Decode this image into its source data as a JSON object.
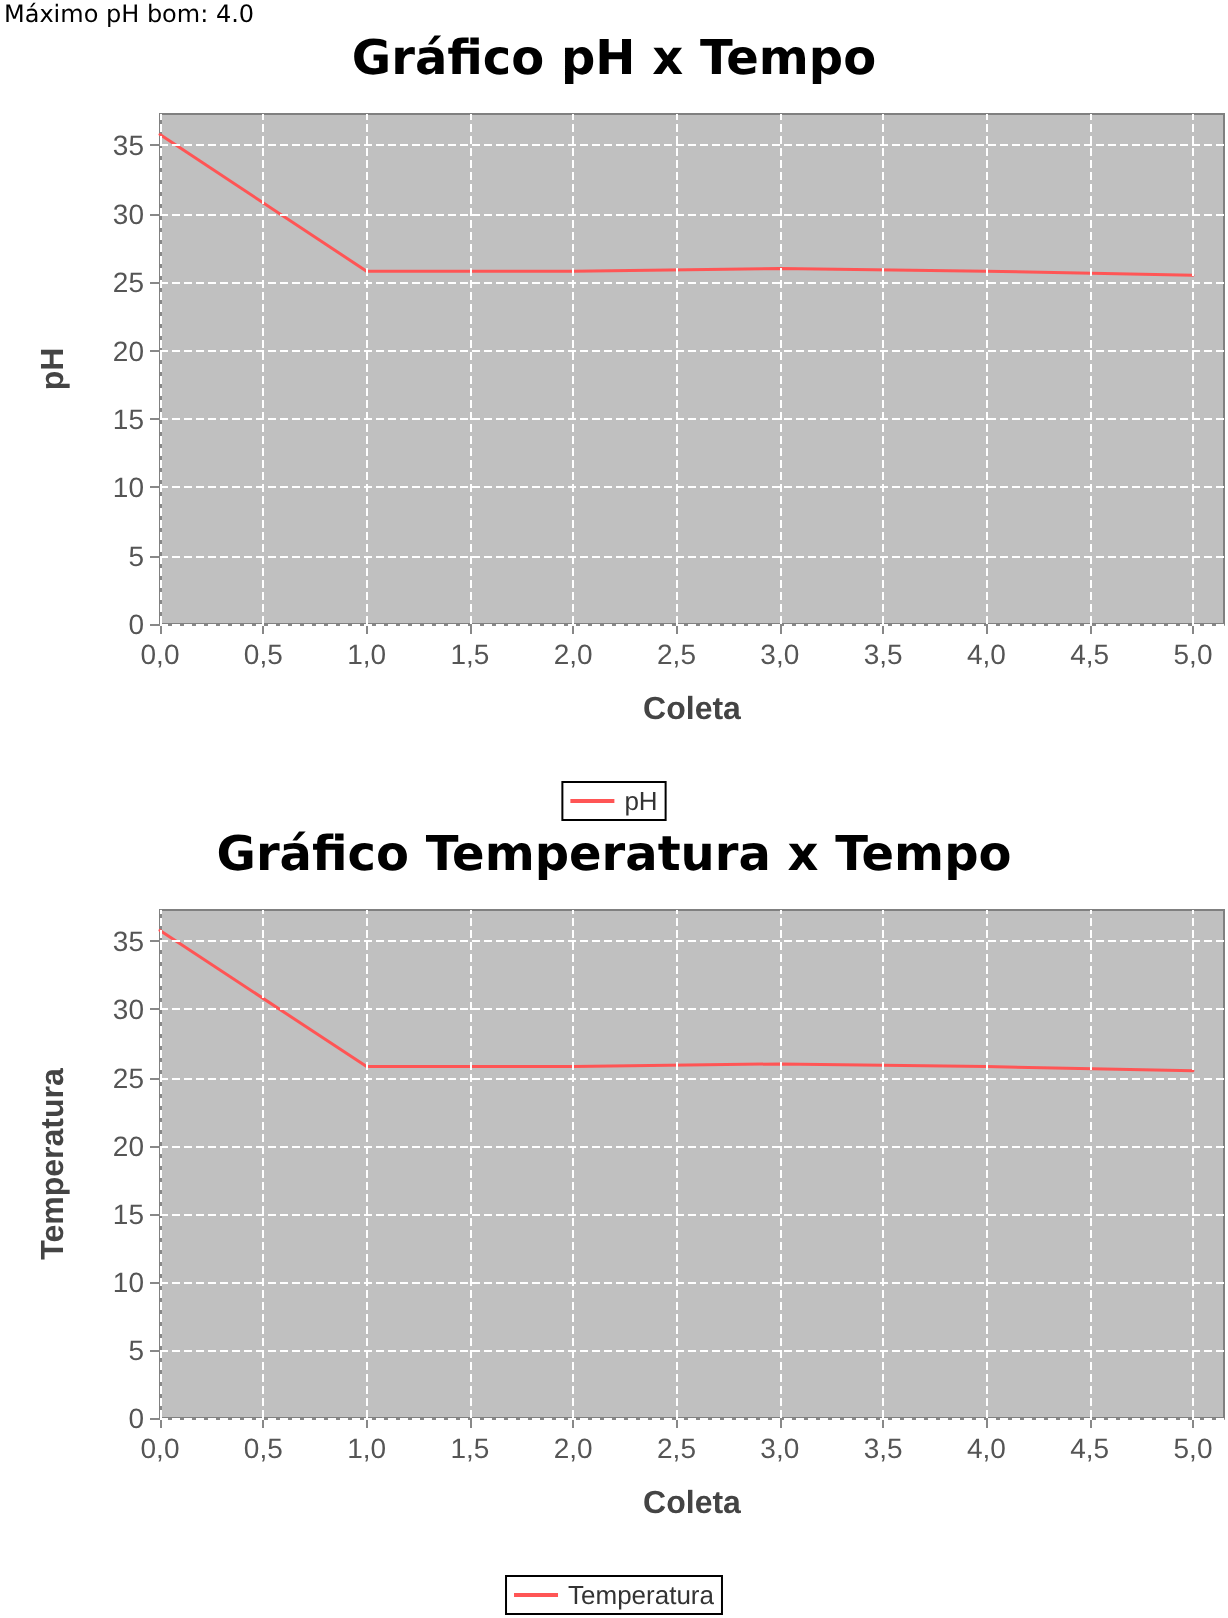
{
  "chart_data": [
    {
      "type": "line",
      "title": "Gráfico pH x Tempo",
      "xlabel": "Coleta",
      "ylabel": "pH",
      "annotations": [
        "Máximo pH bom: 4.0"
      ],
      "x": [
        0,
        1,
        2,
        3,
        4,
        5
      ],
      "series": [
        {
          "name": "pH",
          "color": "#ff5555",
          "values": [
            35.8,
            25.8,
            25.8,
            26.0,
            25.8,
            25.5
          ]
        }
      ],
      "xlim": [
        0,
        5.15
      ],
      "ylim": [
        0,
        37.3
      ],
      "xticks": [
        {
          "value": 0,
          "label": "0,0"
        },
        {
          "value": 0.5,
          "label": "0,5"
        },
        {
          "value": 1,
          "label": "1,0"
        },
        {
          "value": 1.5,
          "label": "1,5"
        },
        {
          "value": 2,
          "label": "2,0"
        },
        {
          "value": 2.5,
          "label": "2,5"
        },
        {
          "value": 3,
          "label": "3,0"
        },
        {
          "value": 3.5,
          "label": "3,5"
        },
        {
          "value": 4,
          "label": "4,0"
        },
        {
          "value": 4.5,
          "label": "4,5"
        },
        {
          "value": 5,
          "label": "5,0"
        }
      ],
      "yticks": [
        0,
        5,
        10,
        15,
        20,
        25,
        30,
        35
      ],
      "grid": true,
      "legend": "bottom",
      "marker": "none",
      "line_style": "solid"
    },
    {
      "type": "line",
      "title": "Gráfico Temperatura x Tempo",
      "xlabel": "Coleta",
      "ylabel": "Temperatura",
      "x": [
        0,
        1,
        2,
        3,
        4,
        5
      ],
      "series": [
        {
          "name": "Temperatura",
          "color": "#ff5555",
          "values": [
            35.8,
            25.8,
            25.8,
            26.0,
            25.8,
            25.5
          ]
        }
      ],
      "xlim": [
        0,
        5.15
      ],
      "ylim": [
        0,
        37.3
      ],
      "xticks": [
        {
          "value": 0,
          "label": "0,0"
        },
        {
          "value": 0.5,
          "label": "0,5"
        },
        {
          "value": 1,
          "label": "1,0"
        },
        {
          "value": 1.5,
          "label": "1,5"
        },
        {
          "value": 2,
          "label": "2,0"
        },
        {
          "value": 2.5,
          "label": "2,5"
        },
        {
          "value": 3,
          "label": "3,0"
        },
        {
          "value": 3.5,
          "label": "3,5"
        },
        {
          "value": 4,
          "label": "4,0"
        },
        {
          "value": 4.5,
          "label": "4,5"
        },
        {
          "value": 5,
          "label": "5,0"
        }
      ],
      "yticks": [
        0,
        5,
        10,
        15,
        20,
        25,
        30,
        35
      ],
      "grid": true,
      "legend": "bottom",
      "marker": "none",
      "line_style": "solid"
    }
  ]
}
